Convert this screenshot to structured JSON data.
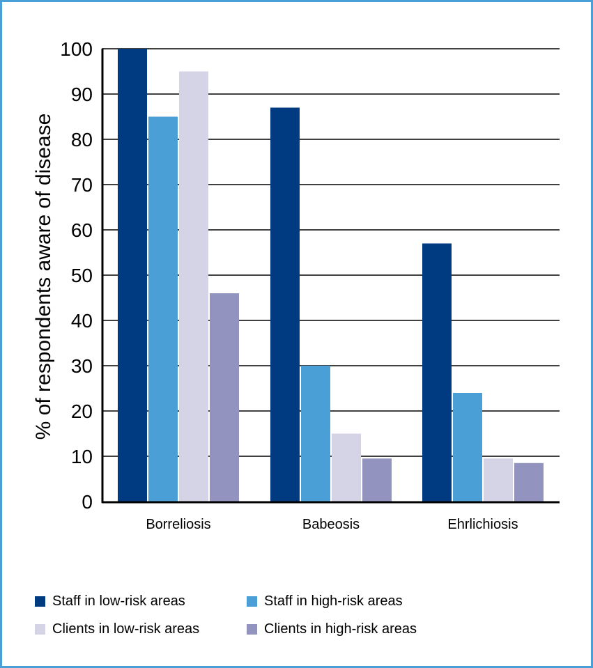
{
  "chart_data": {
    "type": "bar",
    "categories": [
      "Borreliosis",
      "Babeosis",
      "Ehrlichiosis"
    ],
    "series": [
      {
        "name": "Staff in low-risk areas",
        "color": "#003a80",
        "values": [
          100,
          87,
          57
        ]
      },
      {
        "name": "Staff in high-risk areas",
        "color": "#4a9fd6",
        "values": [
          85,
          30,
          24
        ]
      },
      {
        "name": "Clients in low-risk areas",
        "color": "#d4d4e6",
        "values": [
          95,
          15,
          9.5
        ]
      },
      {
        "name": "Clients in high-risk areas",
        "color": "#9393c0",
        "values": [
          46,
          9.5,
          8.5
        ]
      }
    ],
    "ylabel": "% of respondents aware of disease",
    "xlabel": "",
    "ylim": [
      0,
      100
    ],
    "yticks": [
      "0",
      "10",
      "20",
      "30",
      "40",
      "50",
      "60",
      "70",
      "80",
      "90",
      "100"
    ],
    "grid": true,
    "legend_position": "bottom"
  }
}
